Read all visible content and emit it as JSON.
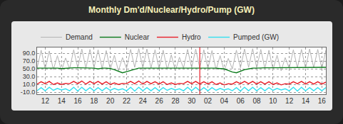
{
  "chart_data": {
    "type": "line",
    "title": "Monthly Dm'd/Nuclear/Hydro/Pump (GW)",
    "categories": [
      null,
      null,
      "12",
      null,
      null,
      null,
      "14",
      null,
      null,
      null,
      "16",
      null,
      null,
      null,
      "18",
      null,
      null,
      null,
      "20",
      null,
      null,
      null,
      "22",
      null,
      null,
      null,
      "24",
      null,
      null,
      null,
      "26",
      null,
      null,
      null,
      "28",
      null,
      null,
      null,
      "30",
      null,
      null,
      null,
      "02",
      null,
      null,
      null,
      "04",
      null,
      null,
      null,
      "06",
      null,
      null,
      null,
      "08",
      null,
      null,
      null,
      "10",
      null,
      null,
      null,
      "12",
      null,
      null,
      null,
      "14",
      null,
      null,
      null,
      "16",
      null
    ],
    "series": [
      {
        "name": "Demand",
        "color": "#b4b4b4",
        "values": [
          52,
          98,
          50,
          96,
          48,
          84,
          45,
          78,
          50,
          99,
          53,
          101,
          52,
          100,
          53,
          99,
          51,
          97,
          48,
          85,
          45,
          79,
          51,
          100,
          54,
          102,
          53,
          101,
          52,
          99,
          51,
          98,
          48,
          86,
          45,
          80,
          52,
          100,
          53,
          101,
          52,
          99,
          51,
          97,
          48,
          84,
          44,
          77,
          50,
          98,
          53,
          101,
          54,
          102,
          53,
          100,
          51,
          98,
          48,
          85,
          45,
          79,
          51,
          99,
          53,
          100,
          52,
          101,
          53,
          100,
          51,
          98
        ]
      },
      {
        "name": "Nuclear",
        "color": "#0a7a1a",
        "values": [
          52,
          52,
          52,
          53,
          52,
          52,
          51,
          52,
          53,
          53,
          53,
          53,
          53,
          53,
          52,
          50,
          52,
          52,
          51,
          48,
          44,
          40,
          43,
          46,
          50,
          52,
          52,
          52,
          52,
          52,
          52,
          53,
          53,
          53,
          53,
          53,
          53,
          53,
          53,
          53,
          53,
          52,
          52,
          52,
          52,
          51,
          50,
          46,
          42,
          40,
          44,
          48,
          50,
          52,
          52,
          53,
          53,
          53,
          53,
          53,
          53,
          54,
          54,
          54,
          54,
          54,
          54,
          54,
          54,
          54,
          54,
          54
        ]
      },
      {
        "name": "Hydro",
        "color": "#e8202a",
        "values": [
          11,
          17,
          12,
          18,
          10,
          14,
          10,
          13,
          12,
          18,
          12,
          19,
          11,
          18,
          12,
          18,
          11,
          17,
          10,
          14,
          10,
          13,
          12,
          18,
          12,
          19,
          11,
          18,
          12,
          17,
          11,
          17,
          10,
          14,
          10,
          13,
          12,
          18,
          12,
          18,
          11,
          17,
          11,
          17,
          10,
          14,
          9,
          12,
          11,
          17,
          12,
          18,
          12,
          18,
          11,
          17,
          11,
          17,
          10,
          14,
          9,
          12,
          11,
          17,
          12,
          18,
          11,
          17,
          11,
          17,
          11,
          16
        ]
      },
      {
        "name": "Pumped (GW)",
        "color": "#33e0f0",
        "values": [
          -6,
          2,
          -6,
          3,
          -5,
          0,
          -4,
          -1,
          -6,
          3,
          -7,
          3,
          -6,
          2,
          -6,
          2,
          -6,
          2,
          -5,
          0,
          -4,
          -1,
          -6,
          3,
          -7,
          3,
          -6,
          2,
          -6,
          2,
          -6,
          2,
          -5,
          0,
          -4,
          -1,
          -6,
          3,
          -6,
          3,
          -6,
          2,
          -6,
          2,
          -5,
          0,
          -4,
          -1,
          -6,
          2,
          -7,
          3,
          -6,
          3,
          -6,
          2,
          -6,
          2,
          -5,
          0,
          -4,
          -1,
          -6,
          3,
          -7,
          3,
          -6,
          2,
          -6,
          2,
          -6,
          2
        ]
      }
    ],
    "ylim": [
      -15,
      105
    ],
    "yticks": [
      {
        "value": -10,
        "label": "-10.0"
      },
      {
        "value": 10,
        "label": "10.0"
      },
      {
        "value": 30,
        "label": "30.0"
      },
      {
        "value": 50,
        "label": "50.0"
      },
      {
        "value": 70,
        "label": "70.0"
      },
      {
        "value": 90,
        "label": "90.0"
      }
    ],
    "grid": true,
    "legend": "top"
  }
}
